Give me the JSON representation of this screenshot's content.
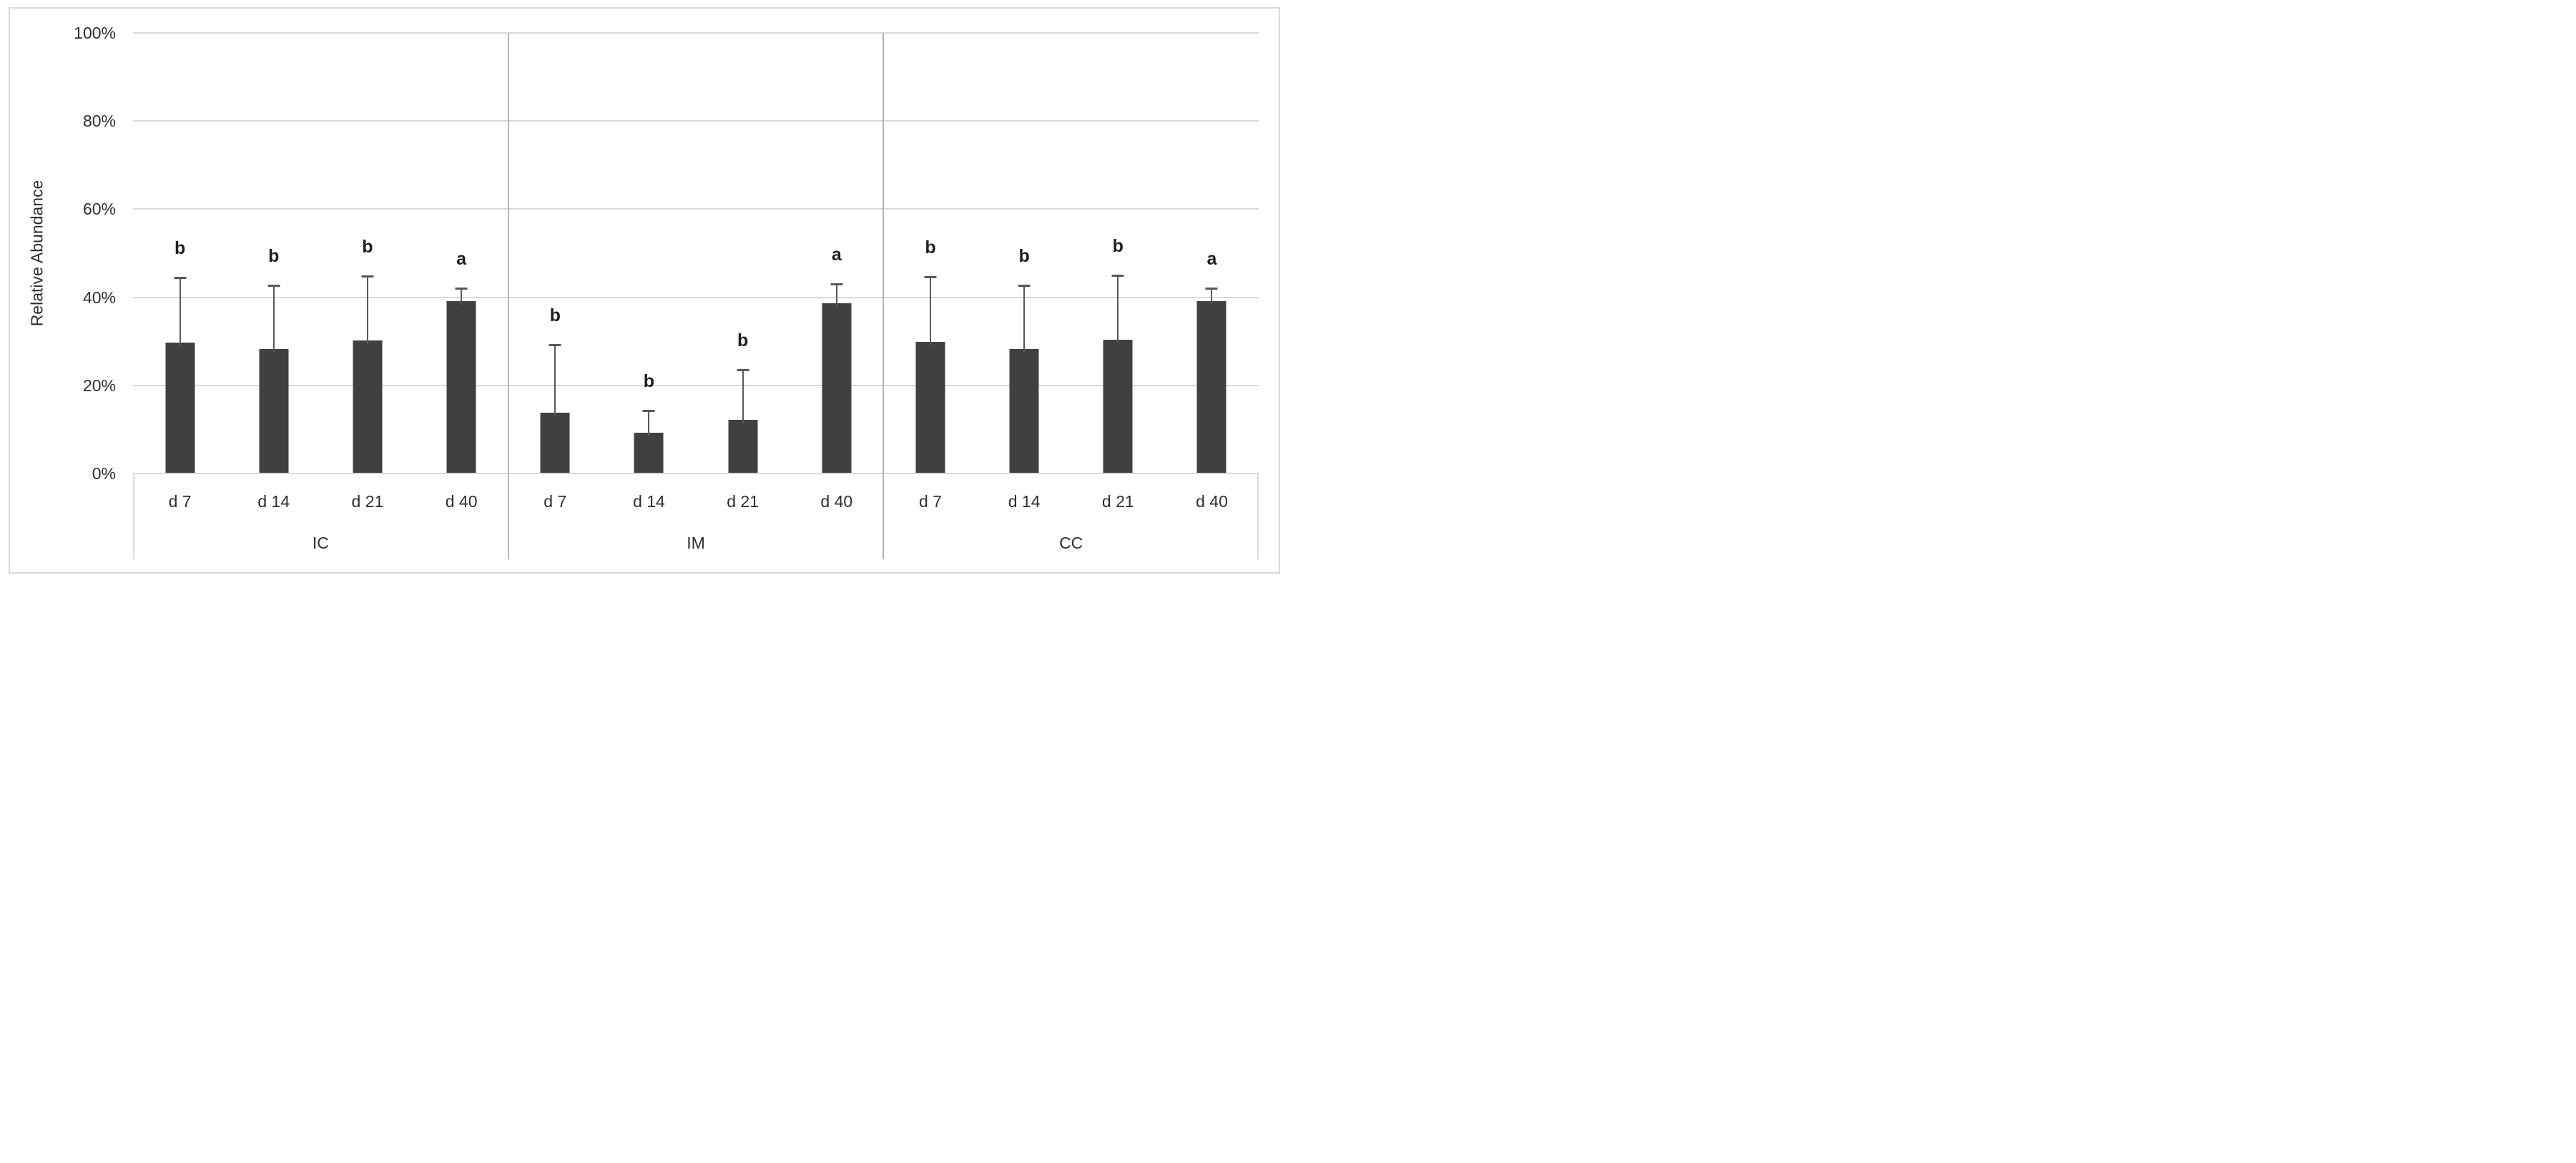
{
  "chart_data": {
    "type": "bar",
    "ylabel": "Relative Abundance",
    "ylim": [
      0,
      100
    ],
    "ytick_values": [
      0,
      20,
      40,
      60,
      80,
      100
    ],
    "ytick_labels": [
      "0%",
      "20%",
      "40%",
      "60%",
      "80%",
      "100%"
    ],
    "grid": "horizontal gridlines on, light gray",
    "legend": "none",
    "categories_per_group": [
      "d 7",
      "d 14",
      "d 21",
      "d 40"
    ],
    "groups": [
      {
        "label": "IC",
        "categories": [
          "d 7",
          "d 14",
          "d 21",
          "d 40"
        ],
        "values": [
          29.7,
          28.2,
          30.2,
          39.2
        ],
        "error_plus": [
          14.8,
          14.5,
          14.6,
          2.9
        ],
        "sig_letters": [
          "b",
          "b",
          "b",
          "a"
        ]
      },
      {
        "label": "IM",
        "categories": [
          "d 7",
          "d 14",
          "d 21",
          "d 40"
        ],
        "values": [
          13.8,
          9.2,
          12.2,
          38.6
        ],
        "error_plus": [
          15.4,
          5.1,
          11.3,
          4.4
        ],
        "sig_letters": [
          "b",
          "b",
          "b",
          "a"
        ]
      },
      {
        "label": "CC",
        "categories": [
          "d 7",
          "d 14",
          "d 21",
          "d 40"
        ],
        "values": [
          29.8,
          28.3,
          30.4,
          39.1
        ],
        "error_plus": [
          14.8,
          14.4,
          14.5,
          3.0
        ],
        "sig_letters": [
          "b",
          "b",
          "b",
          "a"
        ]
      }
    ],
    "colors": {
      "bar": "#404040",
      "error_bar": "#595959",
      "gridline": "#d9d9d9",
      "axis_band_border": "#d9d9d9",
      "group_divider": "#b3b3b3",
      "figure_border": "#d9d9d9",
      "text": "#2e2e2e",
      "sig_letter_text": "#1f1f1f",
      "background": "#ffffff"
    }
  }
}
